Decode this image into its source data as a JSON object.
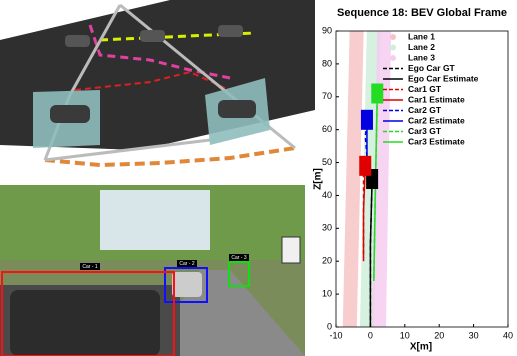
{
  "chart_data": {
    "type": "line",
    "title": "Sequence 18: BEV Global Frame",
    "x_label": "X[m]",
    "y_label": "Z[m]",
    "xlim": [
      -10,
      40
    ],
    "xticks": [
      -10,
      0,
      10,
      20,
      30,
      40
    ],
    "ylim": [
      0,
      90
    ],
    "yticks": [
      0,
      10,
      20,
      30,
      40,
      50,
      60,
      70,
      80,
      90
    ],
    "series": [
      {
        "name": "Lane 1",
        "color": "#f6c4c4",
        "style": "lane",
        "x": [
          -6,
          -5,
          -4
        ],
        "values": [
          0,
          45,
          90
        ]
      },
      {
        "name": "Lane 2",
        "color": "#cfeedb",
        "style": "lane",
        "x": [
          -1,
          0,
          1
        ],
        "values": [
          0,
          45,
          90
        ]
      },
      {
        "name": "Lane 3",
        "color": "#f5cdf0",
        "style": "lane",
        "x": [
          2.5,
          3.2,
          4
        ],
        "values": [
          0,
          45,
          90
        ]
      },
      {
        "name": "Ego Car GT",
        "color": "#000000",
        "style": "dashed",
        "x": [
          0,
          0,
          0.5
        ],
        "values": [
          0,
          25,
          45
        ]
      },
      {
        "name": "Ego Car Estimate",
        "color": "#000000",
        "style": "solid",
        "x": [
          0,
          0,
          0.5
        ],
        "values": [
          0,
          25,
          45
        ]
      },
      {
        "name": "Car1 GT",
        "color": "#e00000",
        "style": "dashed",
        "x": [
          -2,
          -2,
          -2
        ],
        "values": [
          20,
          35,
          48
        ]
      },
      {
        "name": "Car1 Estimate",
        "color": "#e00000",
        "style": "solid",
        "x": [
          -2,
          -2,
          -1.5
        ],
        "values": [
          21,
          35,
          49
        ]
      },
      {
        "name": "Car2 GT",
        "color": "#0000e0",
        "style": "dashed",
        "x": [
          -1,
          -1.5,
          -1
        ],
        "values": [
          52,
          58,
          62
        ]
      },
      {
        "name": "Car2 Estimate",
        "color": "#0000e0",
        "style": "solid",
        "x": [
          -1,
          -1,
          -1
        ],
        "values": [
          52,
          58,
          63
        ]
      },
      {
        "name": "Car3 GT",
        "color": "#22dd22",
        "style": "dashed",
        "x": [
          1,
          1.5,
          2
        ],
        "values": [
          15,
          45,
          70
        ]
      },
      {
        "name": "Car3 Estimate",
        "color": "#22dd22",
        "style": "solid",
        "x": [
          1,
          1.5,
          2
        ],
        "values": [
          14,
          45,
          71
        ]
      }
    ],
    "legend": "upper-left",
    "boxes": true
  },
  "photo": {
    "labels": [
      "Car - 1",
      "Car - 2",
      "Car - 3"
    ]
  }
}
